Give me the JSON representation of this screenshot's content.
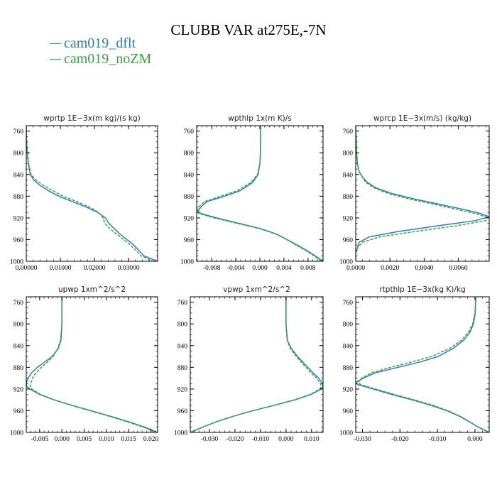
{
  "title": "CLUBB VAR at275E,-7N",
  "legend": [
    {
      "label": "cam019_dflt",
      "color": "#2f7ab9"
    },
    {
      "label": "cam019_noZM",
      "color": "#3ca33c"
    }
  ],
  "colors": {
    "dflt": "#2f7ab9",
    "noZM": "#3ca33c"
  },
  "chart_data": [
    {
      "type": "line",
      "title": "wprtp  1E−3x(m kg)/(s kg)",
      "xlim": [
        0,
        0.0385
      ],
      "ylim": [
        750,
        1000
      ],
      "y_inverted": true,
      "xticks": [
        0,
        0.01,
        0.02,
        0.03
      ],
      "xtick_labels": [
        "0.00000",
        "0.01000",
        "0.02000",
        "0.03000"
      ],
      "yticks": [
        760,
        800,
        840,
        880,
        920,
        960,
        1000
      ],
      "ytick_labels": [
        "760",
        "800",
        "840",
        "880",
        "920",
        "960",
        "1000"
      ],
      "series": [
        {
          "name": "cam019_dflt",
          "style": "solid",
          "y": [
            750,
            760,
            780,
            800,
            820,
            840,
            850,
            860,
            870,
            880,
            890,
            900,
            910,
            920,
            930,
            940,
            950,
            960,
            970,
            980,
            990,
            1000
          ],
          "x": [
            0,
            0,
            0.0001,
            0.0003,
            0.0006,
            0.0012,
            0.0022,
            0.004,
            0.0065,
            0.0095,
            0.0135,
            0.0175,
            0.021,
            0.0232,
            0.0242,
            0.0258,
            0.0275,
            0.0295,
            0.0315,
            0.033,
            0.0345,
            0.0385
          ]
        },
        {
          "name": "cam019_noZM",
          "style": "dashed",
          "y": [
            750,
            760,
            780,
            800,
            820,
            840,
            850,
            860,
            870,
            880,
            890,
            900,
            910,
            920,
            930,
            940,
            950,
            960,
            970,
            980,
            990,
            1000
          ],
          "x": [
            0,
            0,
            0.0001,
            0.0003,
            0.0007,
            0.0014,
            0.0028,
            0.005,
            0.0078,
            0.0108,
            0.0148,
            0.0185,
            0.0212,
            0.0225,
            0.023,
            0.0245,
            0.0265,
            0.0285,
            0.0305,
            0.0322,
            0.0336,
            0.0372
          ]
        }
      ]
    },
    {
      "type": "line",
      "title": "wpthlp  1x(m K)/s",
      "xlim": [
        -0.0105,
        0.0105
      ],
      "ylim": [
        750,
        1000
      ],
      "y_inverted": true,
      "xticks": [
        -0.008,
        -0.004,
        0,
        0.004,
        0.008
      ],
      "xtick_labels": [
        "-0.008",
        "-0.004",
        "0.000",
        "0.004",
        "0.008"
      ],
      "yticks": [
        760,
        800,
        840,
        880,
        920,
        960,
        1000
      ],
      "ytick_labels": [
        "760",
        "800",
        "840",
        "880",
        "920",
        "960",
        "1000"
      ],
      "series": [
        {
          "name": "cam019_dflt",
          "style": "solid",
          "y": [
            750,
            780,
            800,
            820,
            840,
            855,
            870,
            880,
            890,
            900,
            908,
            912,
            920,
            930,
            940,
            950,
            960,
            970,
            980,
            990,
            1000
          ],
          "x": [
            0.0001,
            0.0001,
            0.0001,
            0,
            -0.0003,
            -0.0012,
            -0.0033,
            -0.0058,
            -0.0088,
            -0.0098,
            -0.0103,
            -0.0098,
            -0.0072,
            -0.0035,
            0.0002,
            0.0028,
            0.0045,
            0.0062,
            0.0078,
            0.0092,
            0.0105
          ]
        },
        {
          "name": "cam019_noZM",
          "style": "dashed",
          "y": [
            750,
            780,
            800,
            820,
            840,
            855,
            870,
            880,
            890,
            900,
            908,
            912,
            920,
            930,
            940,
            950,
            960,
            970,
            980,
            990,
            1000
          ],
          "x": [
            0.0001,
            0.0001,
            0.0001,
            0,
            -0.0004,
            -0.0015,
            -0.0038,
            -0.0065,
            -0.0092,
            -0.0102,
            -0.0105,
            -0.0101,
            -0.0076,
            -0.0038,
            0,
            0.0027,
            0.0045,
            0.006,
            0.0076,
            0.009,
            0.0102
          ]
        }
      ]
    },
    {
      "type": "line",
      "title": "wprcp  1E−3x(m/s) (kg/kg)",
      "xlim": [
        0,
        0.0078
      ],
      "ylim": [
        750,
        1000
      ],
      "y_inverted": true,
      "xticks": [
        0,
        0.002,
        0.004,
        0.006
      ],
      "xtick_labels": [
        "0.0000",
        "0.0020",
        "0.0040",
        "0.0060"
      ],
      "yticks": [
        760,
        800,
        840,
        880,
        920,
        960,
        1000
      ],
      "ytick_labels": [
        "760",
        "800",
        "840",
        "880",
        "920",
        "960",
        "1000"
      ],
      "series": [
        {
          "name": "cam019_dflt",
          "style": "solid",
          "y": [
            750,
            800,
            820,
            835,
            845,
            855,
            865,
            875,
            885,
            895,
            905,
            912,
            918,
            925,
            935,
            945,
            955,
            965,
            975,
            985,
            1000
          ],
          "x": [
            0,
            5e-05,
            0.0001,
            0.0002,
            0.0004,
            0.0007,
            0.0012,
            0.0021,
            0.0034,
            0.0049,
            0.0064,
            0.0073,
            0.0078,
            0.007,
            0.0047,
            0.0025,
            0.0008,
            0.0002,
            0.0001,
            0,
            0
          ]
        },
        {
          "name": "cam019_noZM",
          "style": "dashed",
          "y": [
            750,
            800,
            820,
            835,
            845,
            855,
            865,
            875,
            885,
            895,
            905,
            912,
            918,
            925,
            935,
            945,
            955,
            965,
            975,
            985,
            1000
          ],
          "x": [
            0,
            5e-05,
            0.0001,
            0.0002,
            0.0004,
            0.0006,
            0.0011,
            0.0019,
            0.0031,
            0.0046,
            0.006,
            0.007,
            0.0076,
            0.0076,
            0.0058,
            0.0035,
            0.0014,
            0.0004,
            0.0001,
            0,
            0
          ]
        }
      ]
    },
    {
      "type": "line",
      "title": "upwp  1xm^2/s^2",
      "xlim": [
        -0.008,
        0.0215
      ],
      "ylim": [
        750,
        1000
      ],
      "y_inverted": true,
      "xticks": [
        -0.005,
        0,
        0.005,
        0.01,
        0.015,
        0.02
      ],
      "xtick_labels": [
        "-0.005",
        "0.000",
        "0.005",
        "0.010",
        "0.015",
        "0.020"
      ],
      "yticks": [
        760,
        800,
        840,
        880,
        920,
        960,
        1000
      ],
      "ytick_labels": [
        "760",
        "800",
        "840",
        "880",
        "920",
        "960",
        "1000"
      ],
      "series": [
        {
          "name": "cam019_dflt",
          "style": "solid",
          "y": [
            750,
            800,
            830,
            845,
            860,
            870,
            880,
            890,
            900,
            910,
            915,
            920,
            930,
            940,
            950,
            960,
            970,
            980,
            990,
            1000
          ],
          "x": [
            0,
            0,
            -0.0002,
            -0.0008,
            -0.0022,
            -0.0038,
            -0.0055,
            -0.0068,
            -0.0076,
            -0.008,
            -0.0079,
            -0.0072,
            -0.005,
            -0.0018,
            0.0022,
            0.0065,
            0.0108,
            0.0148,
            0.0185,
            0.0215
          ]
        },
        {
          "name": "cam019_noZM",
          "style": "dashed",
          "y": [
            750,
            800,
            830,
            845,
            860,
            870,
            880,
            890,
            900,
            910,
            915,
            920,
            930,
            940,
            950,
            960,
            970,
            980,
            990,
            1000
          ],
          "x": [
            0,
            0,
            -0.0003,
            -0.0009,
            -0.002,
            -0.0032,
            -0.0046,
            -0.0058,
            -0.0066,
            -0.007,
            -0.0071,
            -0.0068,
            -0.0048,
            -0.0017,
            0.0021,
            0.0063,
            0.0105,
            0.0145,
            0.0182,
            0.021
          ]
        }
      ]
    },
    {
      "type": "line",
      "title": "vpwp  1xm^2/s^2",
      "xlim": [
        -0.0375,
        0.0145
      ],
      "ylim": [
        750,
        1000
      ],
      "y_inverted": true,
      "xticks": [
        -0.03,
        -0.02,
        -0.01,
        0,
        0.01
      ],
      "xtick_labels": [
        "-0.030",
        "-0.020",
        "-0.010",
        "0.000",
        "0.010"
      ],
      "yticks": [
        760,
        800,
        840,
        880,
        920,
        960,
        1000
      ],
      "ytick_labels": [
        "760",
        "800",
        "840",
        "880",
        "920",
        "960",
        "1000"
      ],
      "series": [
        {
          "name": "cam019_dflt",
          "style": "solid",
          "y": [
            750,
            800,
            830,
            845,
            860,
            875,
            890,
            900,
            910,
            915,
            920,
            930,
            940,
            950,
            960,
            970,
            980,
            990,
            1000
          ],
          "x": [
            0,
            0,
            0.0005,
            0.002,
            0.0045,
            0.0075,
            0.0105,
            0.0128,
            0.0143,
            0.0145,
            0.0138,
            0.0098,
            0.0035,
            -0.0045,
            -0.013,
            -0.0205,
            -0.027,
            -0.0325,
            -0.0375
          ]
        },
        {
          "name": "cam019_noZM",
          "style": "dashed",
          "y": [
            750,
            800,
            830,
            845,
            860,
            875,
            890,
            900,
            910,
            915,
            920,
            930,
            940,
            950,
            960,
            970,
            980,
            990,
            1000
          ],
          "x": [
            0,
            0,
            0.0004,
            0.0017,
            0.004,
            0.0068,
            0.0097,
            0.012,
            0.0135,
            0.0138,
            0.0133,
            0.0095,
            0.0033,
            -0.0046,
            -0.013,
            -0.0205,
            -0.027,
            -0.0325,
            -0.0375
          ]
        }
      ]
    },
    {
      "type": "line",
      "title": "rtpthlp  1E−3x(kg K)/kg",
      "xlim": [
        -0.0318,
        0.0038
      ],
      "ylim": [
        750,
        1000
      ],
      "y_inverted": true,
      "xticks": [
        -0.03,
        -0.02,
        -0.01,
        0
      ],
      "xtick_labels": [
        "-0.030",
        "-0.020",
        "-0.010",
        "0.000"
      ],
      "yticks": [
        760,
        800,
        840,
        880,
        920,
        960,
        1000
      ],
      "ytick_labels": [
        "760",
        "800",
        "840",
        "880",
        "920",
        "960",
        "1000"
      ],
      "series": [
        {
          "name": "cam019_dflt",
          "style": "solid",
          "y": [
            750,
            780,
            800,
            815,
            830,
            845,
            860,
            870,
            880,
            890,
            900,
            908,
            912,
            920,
            930,
            940,
            950,
            960,
            970,
            980,
            990,
            1000
          ],
          "x": [
            0.0002,
            0.0001,
            -0.0004,
            -0.0013,
            -0.003,
            -0.0058,
            -0.0098,
            -0.0145,
            -0.0205,
            -0.0265,
            -0.0298,
            -0.0318,
            -0.0312,
            -0.0272,
            -0.0222,
            -0.0168,
            -0.0118,
            -0.0075,
            -0.0042,
            -0.0016,
            0.0008,
            0.0038
          ]
        },
        {
          "name": "cam019_noZM",
          "style": "dashed",
          "y": [
            750,
            780,
            800,
            815,
            830,
            845,
            860,
            870,
            880,
            890,
            900,
            908,
            912,
            920,
            930,
            940,
            950,
            960,
            970,
            980,
            990,
            1000
          ],
          "x": [
            0.0002,
            0,
            -0.0006,
            -0.0017,
            -0.0036,
            -0.0067,
            -0.0115,
            -0.0168,
            -0.0225,
            -0.0275,
            -0.0302,
            -0.0312,
            -0.0305,
            -0.0265,
            -0.0215,
            -0.0162,
            -0.0112,
            -0.0072,
            -0.004,
            -0.0015,
            0.0008,
            0.0036
          ]
        }
      ]
    }
  ]
}
